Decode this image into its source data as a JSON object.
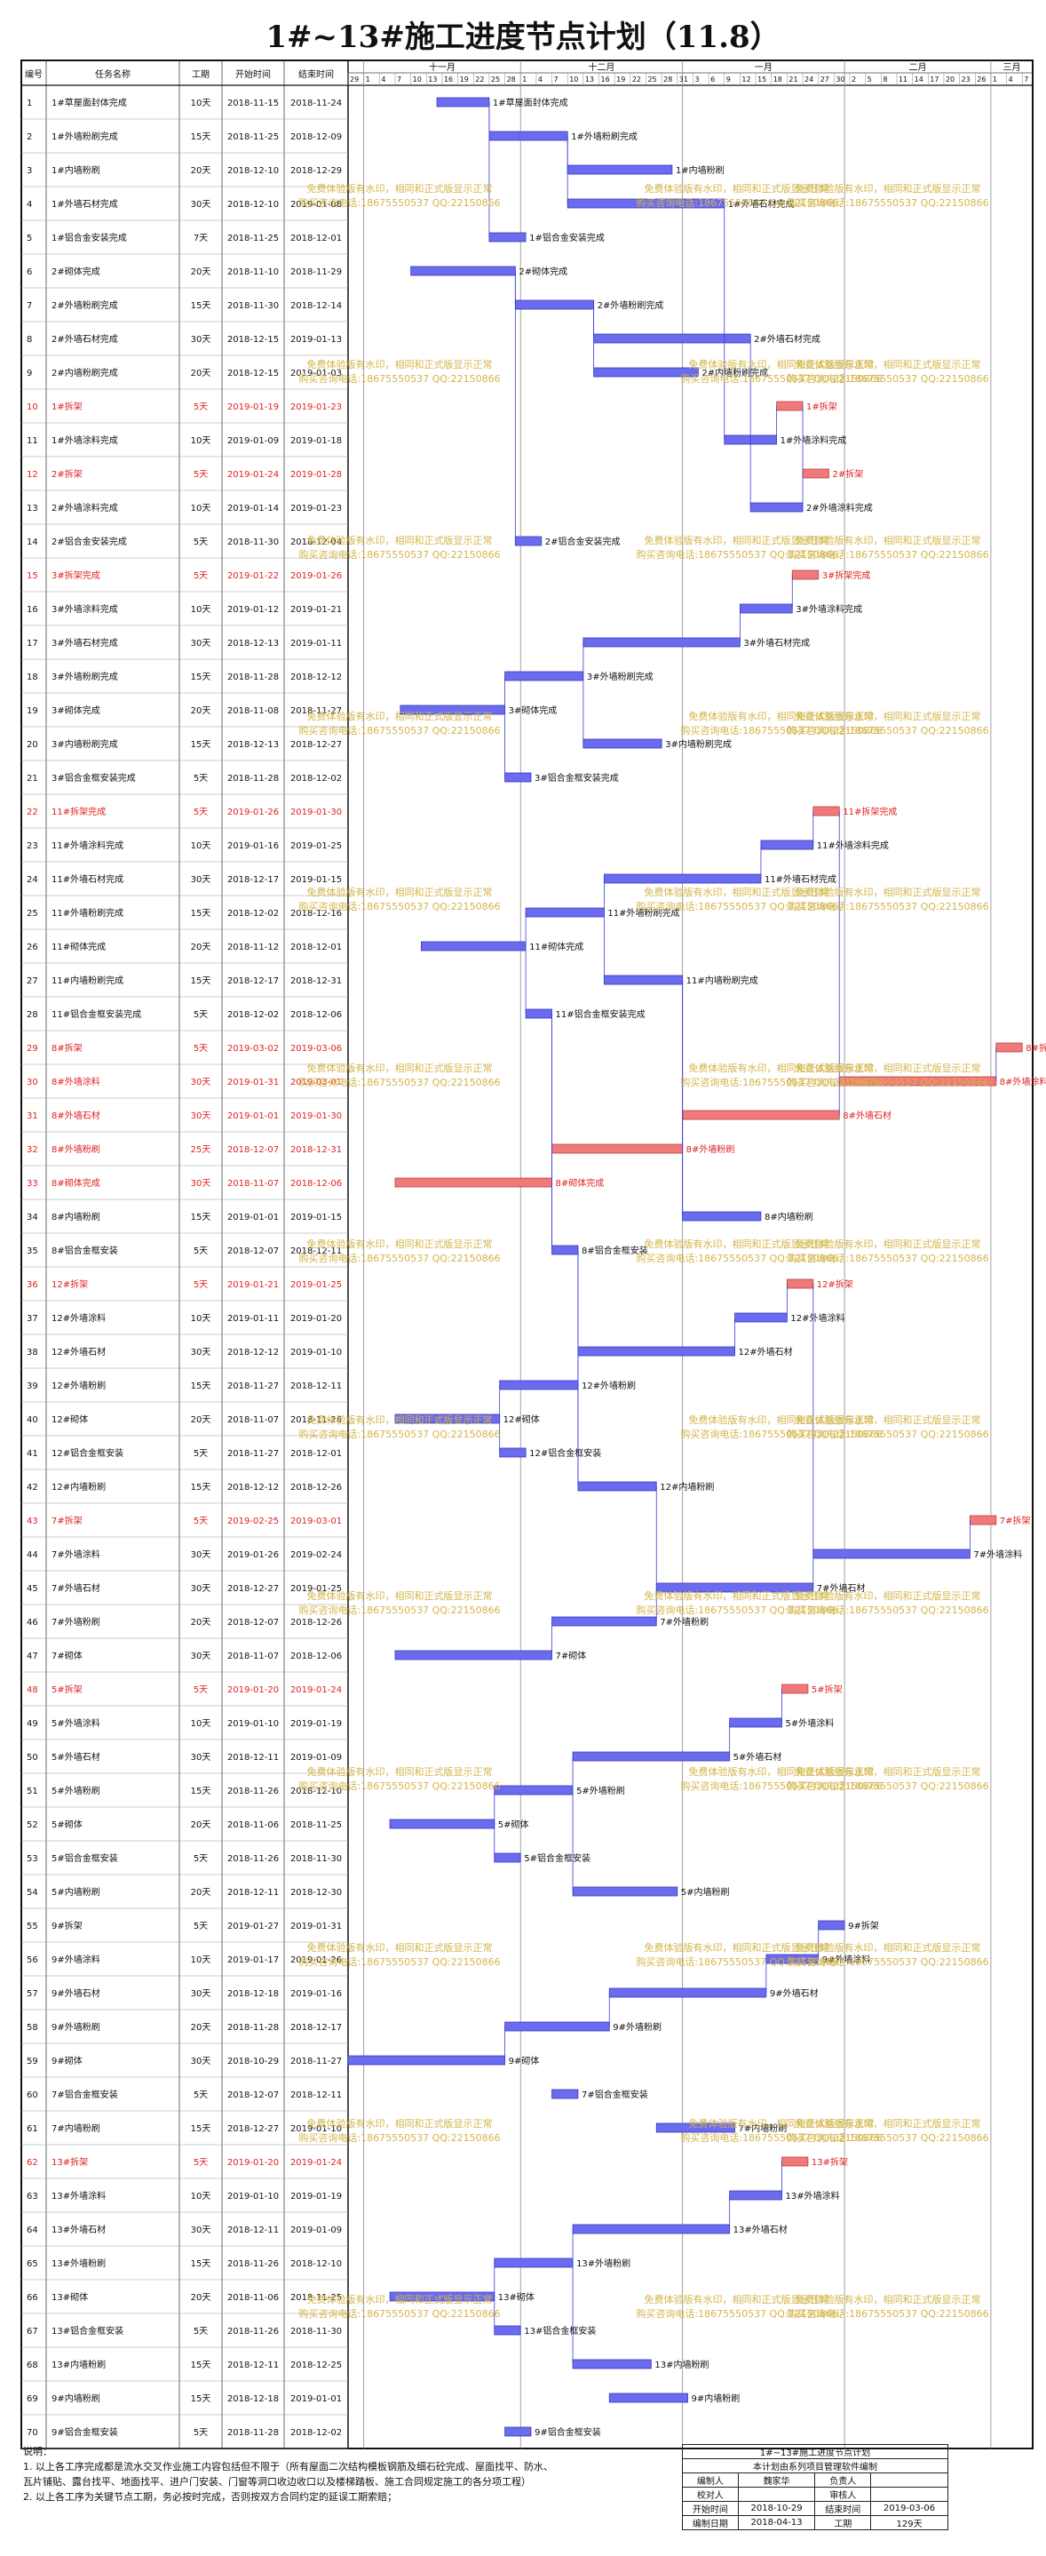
{
  "page_title": "1#~13#施工进度节点计划（11.8）",
  "chart_data": {
    "type": "gantt",
    "title": "1#~13#施工进度节点计划（11.8）",
    "columns": [
      "编号",
      "任务名称",
      "工期",
      "开始时间",
      "结束时间"
    ],
    "timeline": {
      "start": "2018-10-29",
      "end": "2019-03-09",
      "months": [
        {
          "label": "十一月",
          "start": "2018-11-01",
          "end": "2018-12-01"
        },
        {
          "label": "十二月",
          "start": "2018-12-01",
          "end": "2019-01-01"
        },
        {
          "label": "一月",
          "start": "2019-01-01",
          "end": "2019-02-01"
        },
        {
          "label": "二月",
          "start": "2019-02-01",
          "end": "2019-03-01"
        },
        {
          "label": "三月",
          "start": "2019-03-01",
          "end": "2019-03-09"
        }
      ]
    },
    "tasks": [
      {
        "id": 1,
        "name": "1#草屋面封体完成",
        "dur": "10天",
        "start": "2018-11-15",
        "end": "2018-11-24",
        "red": false
      },
      {
        "id": 2,
        "name": "1#外墙粉刷完成",
        "dur": "15天",
        "start": "2018-11-25",
        "end": "2018-12-09",
        "red": false
      },
      {
        "id": 3,
        "name": "1#内墙粉刷",
        "dur": "20天",
        "start": "2018-12-10",
        "end": "2018-12-29",
        "red": false
      },
      {
        "id": 4,
        "name": "1#外墙石材完成",
        "dur": "30天",
        "start": "2018-12-10",
        "end": "2019-01-08",
        "red": false
      },
      {
        "id": 5,
        "name": "1#铝合金安装完成",
        "dur": "7天",
        "start": "2018-11-25",
        "end": "2018-12-01",
        "red": false
      },
      {
        "id": 6,
        "name": "2#砌体完成",
        "dur": "20天",
        "start": "2018-11-10",
        "end": "2018-11-29",
        "red": false
      },
      {
        "id": 7,
        "name": "2#外墙粉刷完成",
        "dur": "15天",
        "start": "2018-11-30",
        "end": "2018-12-14",
        "red": false
      },
      {
        "id": 8,
        "name": "2#外墙石材完成",
        "dur": "30天",
        "start": "2018-12-15",
        "end": "2019-01-13",
        "red": false
      },
      {
        "id": 9,
        "name": "2#内墙粉刷完成",
        "dur": "20天",
        "start": "2018-12-15",
        "end": "2019-01-03",
        "red": false
      },
      {
        "id": 10,
        "name": "1#拆架",
        "dur": "5天",
        "start": "2019-01-19",
        "end": "2019-01-23",
        "red": true
      },
      {
        "id": 11,
        "name": "1#外墙涂料完成",
        "dur": "10天",
        "start": "2019-01-09",
        "end": "2019-01-18",
        "red": false
      },
      {
        "id": 12,
        "name": "2#拆架",
        "dur": "5天",
        "start": "2019-01-24",
        "end": "2019-01-28",
        "red": true
      },
      {
        "id": 13,
        "name": "2#外墙涂料完成",
        "dur": "10天",
        "start": "2019-01-14",
        "end": "2019-01-23",
        "red": false
      },
      {
        "id": 14,
        "name": "2#铝合金安装完成",
        "dur": "5天",
        "start": "2018-11-30",
        "end": "2018-12-04",
        "red": false
      },
      {
        "id": 15,
        "name": "3#拆架完成",
        "dur": "5天",
        "start": "2019-01-22",
        "end": "2019-01-26",
        "red": true
      },
      {
        "id": 16,
        "name": "3#外墙涂料完成",
        "dur": "10天",
        "start": "2019-01-12",
        "end": "2019-01-21",
        "red": false
      },
      {
        "id": 17,
        "name": "3#外墙石材完成",
        "dur": "30天",
        "start": "2018-12-13",
        "end": "2019-01-11",
        "red": false
      },
      {
        "id": 18,
        "name": "3#外墙粉刷完成",
        "dur": "15天",
        "start": "2018-11-28",
        "end": "2018-12-12",
        "red": false
      },
      {
        "id": 19,
        "name": "3#砌体完成",
        "dur": "20天",
        "start": "2018-11-08",
        "end": "2018-11-27",
        "red": false
      },
      {
        "id": 20,
        "name": "3#内墙粉刷完成",
        "dur": "15天",
        "start": "2018-12-13",
        "end": "2018-12-27",
        "red": false
      },
      {
        "id": 21,
        "name": "3#铝合金框安装完成",
        "dur": "5天",
        "start": "2018-11-28",
        "end": "2018-12-02",
        "red": false
      },
      {
        "id": 22,
        "name": "11#拆架完成",
        "dur": "5天",
        "start": "2019-01-26",
        "end": "2019-01-30",
        "red": true
      },
      {
        "id": 23,
        "name": "11#外墙涂料完成",
        "dur": "10天",
        "start": "2019-01-16",
        "end": "2019-01-25",
        "red": false
      },
      {
        "id": 24,
        "name": "11#外墙石材完成",
        "dur": "30天",
        "start": "2018-12-17",
        "end": "2019-01-15",
        "red": false
      },
      {
        "id": 25,
        "name": "11#外墙粉刷完成",
        "dur": "15天",
        "start": "2018-12-02",
        "end": "2018-12-16",
        "red": false
      },
      {
        "id": 26,
        "name": "11#砌体完成",
        "dur": "20天",
        "start": "2018-11-12",
        "end": "2018-12-01",
        "red": false
      },
      {
        "id": 27,
        "name": "11#内墙粉刷完成",
        "dur": "15天",
        "start": "2018-12-17",
        "end": "2018-12-31",
        "red": false
      },
      {
        "id": 28,
        "name": "11#铝合金框安装完成",
        "dur": "5天",
        "start": "2018-12-02",
        "end": "2018-12-06",
        "red": false
      },
      {
        "id": 29,
        "name": "8#拆架",
        "dur": "5天",
        "start": "2019-03-02",
        "end": "2019-03-06",
        "red": true
      },
      {
        "id": 30,
        "name": "8#外墙涂料",
        "dur": "30天",
        "start": "2019-01-31",
        "end": "2019-03-01",
        "red": true
      },
      {
        "id": 31,
        "name": "8#外墙石材",
        "dur": "30天",
        "start": "2019-01-01",
        "end": "2019-01-30",
        "red": true
      },
      {
        "id": 32,
        "name": "8#外墙粉刷",
        "dur": "25天",
        "start": "2018-12-07",
        "end": "2018-12-31",
        "red": true
      },
      {
        "id": 33,
        "name": "8#砌体完成",
        "dur": "30天",
        "start": "2018-11-07",
        "end": "2018-12-06",
        "red": true
      },
      {
        "id": 34,
        "name": "8#内墙粉刷",
        "dur": "15天",
        "start": "2019-01-01",
        "end": "2019-01-15",
        "red": false
      },
      {
        "id": 35,
        "name": "8#铝合金框安装",
        "dur": "5天",
        "start": "2018-12-07",
        "end": "2018-12-11",
        "red": false
      },
      {
        "id": 36,
        "name": "12#拆架",
        "dur": "5天",
        "start": "2019-01-21",
        "end": "2019-01-25",
        "red": true
      },
      {
        "id": 37,
        "name": "12#外墙涂料",
        "dur": "10天",
        "start": "2019-01-11",
        "end": "2019-01-20",
        "red": false
      },
      {
        "id": 38,
        "name": "12#外墙石材",
        "dur": "30天",
        "start": "2018-12-12",
        "end": "2019-01-10",
        "red": false
      },
      {
        "id": 39,
        "name": "12#外墙粉刷",
        "dur": "15天",
        "start": "2018-11-27",
        "end": "2018-12-11",
        "red": false
      },
      {
        "id": 40,
        "name": "12#砌体",
        "dur": "20天",
        "start": "2018-11-07",
        "end": "2018-11-26",
        "red": false
      },
      {
        "id": 41,
        "name": "12#铝合金框安装",
        "dur": "5天",
        "start": "2018-11-27",
        "end": "2018-12-01",
        "red": false
      },
      {
        "id": 42,
        "name": "12#内墙粉刷",
        "dur": "15天",
        "start": "2018-12-12",
        "end": "2018-12-26",
        "red": false
      },
      {
        "id": 43,
        "name": "7#拆架",
        "dur": "5天",
        "start": "2019-02-25",
        "end": "2019-03-01",
        "red": true
      },
      {
        "id": 44,
        "name": "7#外墙涂料",
        "dur": "30天",
        "start": "2019-01-26",
        "end": "2019-02-24",
        "red": false
      },
      {
        "id": 45,
        "name": "7#外墙石材",
        "dur": "30天",
        "start": "2018-12-27",
        "end": "2019-01-25",
        "red": false
      },
      {
        "id": 46,
        "name": "7#外墙粉刷",
        "dur": "20天",
        "start": "2018-12-07",
        "end": "2018-12-26",
        "red": false
      },
      {
        "id": 47,
        "name": "7#砌体",
        "dur": "30天",
        "start": "2018-11-07",
        "end": "2018-12-06",
        "red": false
      },
      {
        "id": 48,
        "name": "5#拆架",
        "dur": "5天",
        "start": "2019-01-20",
        "end": "2019-01-24",
        "red": true
      },
      {
        "id": 49,
        "name": "5#外墙涂料",
        "dur": "10天",
        "start": "2019-01-10",
        "end": "2019-01-19",
        "red": false
      },
      {
        "id": 50,
        "name": "5#外墙石材",
        "dur": "30天",
        "start": "2018-12-11",
        "end": "2019-01-09",
        "red": false
      },
      {
        "id": 51,
        "name": "5#外墙粉刷",
        "dur": "15天",
        "start": "2018-11-26",
        "end": "2018-12-10",
        "red": false
      },
      {
        "id": 52,
        "name": "5#砌体",
        "dur": "20天",
        "start": "2018-11-06",
        "end": "2018-11-25",
        "red": false
      },
      {
        "id": 53,
        "name": "5#铝合金框安装",
        "dur": "5天",
        "start": "2018-11-26",
        "end": "2018-11-30",
        "red": false
      },
      {
        "id": 54,
        "name": "5#内墙粉刷",
        "dur": "20天",
        "start": "2018-12-11",
        "end": "2018-12-30",
        "red": false
      },
      {
        "id": 55,
        "name": "9#拆架",
        "dur": "5天",
        "start": "2019-01-27",
        "end": "2019-01-31",
        "red": false
      },
      {
        "id": 56,
        "name": "9#外墙涂料",
        "dur": "10天",
        "start": "2019-01-17",
        "end": "2019-01-26",
        "red": false
      },
      {
        "id": 57,
        "name": "9#外墙石材",
        "dur": "30天",
        "start": "2018-12-18",
        "end": "2019-01-16",
        "red": false
      },
      {
        "id": 58,
        "name": "9#外墙粉刷",
        "dur": "20天",
        "start": "2018-11-28",
        "end": "2018-12-17",
        "red": false
      },
      {
        "id": 59,
        "name": "9#砌体",
        "dur": "30天",
        "start": "2018-10-29",
        "end": "2018-11-27",
        "red": false
      },
      {
        "id": 60,
        "name": "7#铝合金框安装",
        "dur": "5天",
        "start": "2018-12-07",
        "end": "2018-12-11",
        "red": false
      },
      {
        "id": 61,
        "name": "7#内墙粉刷",
        "dur": "15天",
        "start": "2018-12-27",
        "end": "2019-01-10",
        "red": false
      },
      {
        "id": 62,
        "name": "13#拆架",
        "dur": "5天",
        "start": "2019-01-20",
        "end": "2019-01-24",
        "red": true
      },
      {
        "id": 63,
        "name": "13#外墙涂料",
        "dur": "10天",
        "start": "2019-01-10",
        "end": "2019-01-19",
        "red": false
      },
      {
        "id": 64,
        "name": "13#外墙石材",
        "dur": "30天",
        "start": "2018-12-11",
        "end": "2019-01-09",
        "red": false
      },
      {
        "id": 65,
        "name": "13#外墙粉刷",
        "dur": "15天",
        "start": "2018-11-26",
        "end": "2018-12-10",
        "red": false
      },
      {
        "id": 66,
        "name": "13#砌体",
        "dur": "20天",
        "start": "2018-11-06",
        "end": "2018-11-25",
        "red": false
      },
      {
        "id": 67,
        "name": "13#铝合金框安装",
        "dur": "5天",
        "start": "2018-11-26",
        "end": "2018-11-30",
        "red": false
      },
      {
        "id": 68,
        "name": "13#内墙粉刷",
        "dur": "15天",
        "start": "2018-12-11",
        "end": "2018-12-25",
        "red": false
      },
      {
        "id": 69,
        "name": "9#内墙粉刷",
        "dur": "15天",
        "start": "2018-12-18",
        "end": "2019-01-01",
        "red": false
      },
      {
        "id": 70,
        "name": "9#铝合金框安装",
        "dur": "5天",
        "start": "2018-11-28",
        "end": "2018-12-02",
        "red": false
      }
    ]
  },
  "footer": {
    "notes_label": "说明：",
    "notes": [
      "1. 以上各工序完成都是流水交叉作业施工内容包括但不限于（所有屋面二次结构模板钢筋及细石砼完成、屋面找平、防水、",
      "   瓦片铺贴、露台找平、地面找平、进户门安装、门窗等洞口收边收口以及楼梯踏板、施工合同规定施工的各分项工程）",
      "2. 以上各工序为关键节点工期，务必按时完成，否则按双方合同约定的延误工期索赔；"
    ],
    "info_title": "1#~13#施工进度节点计划",
    "info_subtitle": "本计划由系列项目管理软件编制",
    "labels": {
      "editor": "编制人",
      "editor_value": "魏家华",
      "owner": "负责人",
      "checker": "校对人",
      "reviewer": "审核人",
      "start": "开始时间",
      "start_value": "2018-10-29",
      "finish": "结束时间",
      "finish_value": "2019-03-06",
      "date": "编制日期",
      "date_value": "2018-04-13",
      "duration": "工期",
      "duration_value": "129天"
    }
  },
  "watermark": {
    "line1": "免费体验版有水印，相同和正式版显示正常",
    "line2": "购买咨询电话:18675550537 QQ:22150866"
  },
  "colors": {
    "bar": "#6b6bf0",
    "bar_red": "#f07a7a",
    "red_text": "#e02020",
    "link": "#3c3cd8",
    "watermark": "#d4b44a"
  }
}
